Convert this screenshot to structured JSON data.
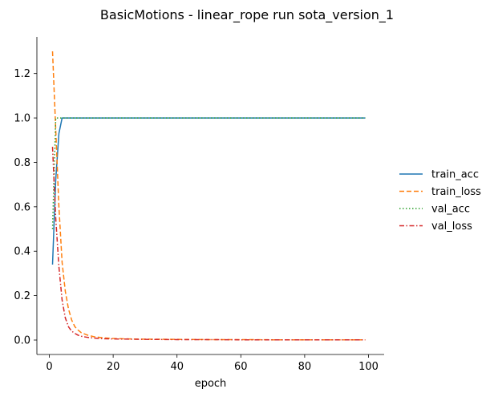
{
  "chart_data": {
    "type": "line",
    "title": "BasicMotions - linear_rope run sota_version_1",
    "xlabel": "epoch",
    "ylabel": "",
    "xlim": [
      -3.9,
      104.9
    ],
    "ylim": [
      -0.065,
      1.365
    ],
    "xticks": [
      0,
      20,
      40,
      60,
      80,
      100
    ],
    "yticks": [
      0.0,
      0.2,
      0.4,
      0.6,
      0.8,
      1.0,
      1.2
    ],
    "xtick_labels": [
      "0",
      "20",
      "40",
      "60",
      "80",
      "100"
    ],
    "ytick_labels": [
      "0.0",
      "0.2",
      "0.4",
      "0.6",
      "0.8",
      "1.0",
      "1.2"
    ],
    "grid": false,
    "legend_position": "right",
    "series": [
      {
        "name": "train_acc",
        "color": "#1f77b4",
        "dash": "solid",
        "x": [
          1,
          2,
          3,
          4,
          99
        ],
        "y": [
          0.34,
          0.72,
          0.93,
          1.0,
          1.0
        ]
      },
      {
        "name": "train_loss",
        "color": "#ff7f0e",
        "dash": "dashed",
        "x": [
          1,
          2,
          3,
          4,
          5,
          6,
          7,
          8,
          9,
          10,
          12,
          14,
          17,
          20,
          25,
          30,
          40,
          50,
          60,
          70,
          80,
          90,
          99
        ],
        "y": [
          1.3,
          0.95,
          0.6,
          0.35,
          0.22,
          0.14,
          0.09,
          0.06,
          0.045,
          0.033,
          0.022,
          0.015,
          0.01,
          0.007,
          0.005,
          0.004,
          0.003,
          0.002,
          0.002,
          0.001,
          0.001,
          0.001,
          0.001
        ]
      },
      {
        "name": "val_acc",
        "color": "#2ca02c",
        "dash": "dotted",
        "x": [
          1,
          2,
          3,
          99
        ],
        "y": [
          0.5,
          1.0,
          1.0,
          1.0
        ]
      },
      {
        "name": "val_loss",
        "color": "#d62728",
        "dash": "dashdot",
        "x": [
          1,
          2,
          3,
          4,
          5,
          6,
          7,
          8,
          9,
          10,
          12,
          14,
          17,
          20,
          25,
          30,
          40,
          50,
          60,
          70,
          80,
          90,
          99
        ],
        "y": [
          0.87,
          0.55,
          0.33,
          0.18,
          0.1,
          0.06,
          0.04,
          0.03,
          0.022,
          0.017,
          0.012,
          0.009,
          0.006,
          0.005,
          0.004,
          0.003,
          0.002,
          0.002,
          0.001,
          0.001,
          0.001,
          0.001,
          0.001
        ]
      }
    ]
  }
}
